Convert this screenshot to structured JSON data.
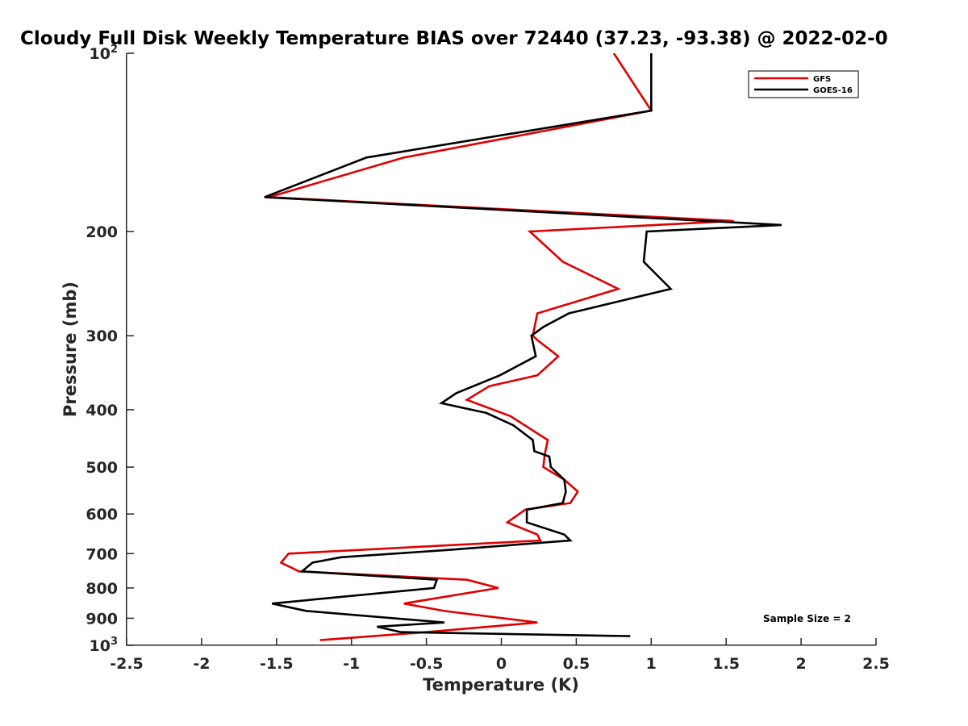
{
  "chart_data": {
    "type": "line",
    "title": "Cloudy Full Disk Weekly Temperature BIAS over 72440 (37.23, -93.38) @ 2022-02-0",
    "xlabel": "Temperature (K)",
    "ylabel": "Pressure (mb)",
    "xlim": [
      -2.5,
      2.5
    ],
    "ylim": [
      100,
      1000
    ],
    "y_scale": "log",
    "y_reversed": true,
    "grid": false,
    "legend_position": "top-right",
    "x_ticks": [
      {
        "value": -2.5,
        "label": "-2.5"
      },
      {
        "value": -2,
        "label": "-2"
      },
      {
        "value": -1.5,
        "label": "-1.5"
      },
      {
        "value": -1,
        "label": "-1"
      },
      {
        "value": -0.5,
        "label": "-0.5"
      },
      {
        "value": 0,
        "label": "0"
      },
      {
        "value": 0.5,
        "label": "0.5"
      },
      {
        "value": 1,
        "label": "1"
      },
      {
        "value": 1.5,
        "label": "1.5"
      },
      {
        "value": 2,
        "label": "2"
      },
      {
        "value": 2.5,
        "label": "2.5"
      }
    ],
    "y_ticks": [
      {
        "value": 100,
        "label": "10",
        "exp": "2"
      },
      {
        "value": 200,
        "label": "200"
      },
      {
        "value": 300,
        "label": "300"
      },
      {
        "value": 400,
        "label": "400"
      },
      {
        "value": 500,
        "label": "500"
      },
      {
        "value": 600,
        "label": "600"
      },
      {
        "value": 700,
        "label": "700"
      },
      {
        "value": 800,
        "label": "800"
      },
      {
        "value": 900,
        "label": "900"
      },
      {
        "value": 1000,
        "label": "10",
        "exp": "3"
      }
    ],
    "series": [
      {
        "name": "GFS",
        "color": "#e00000",
        "points": [
          [
            0.75,
            100
          ],
          [
            1.0,
            125
          ],
          [
            -0.65,
            150
          ],
          [
            -1.55,
            175
          ],
          [
            1.55,
            192
          ],
          [
            0.19,
            200
          ],
          [
            0.41,
            225
          ],
          [
            0.78,
            250
          ],
          [
            0.24,
            275
          ],
          [
            0.21,
            300
          ],
          [
            0.24,
            305
          ],
          [
            0.38,
            325
          ],
          [
            0.24,
            350
          ],
          [
            -0.08,
            365
          ],
          [
            -0.23,
            385
          ],
          [
            0.06,
            410
          ],
          [
            0.31,
            450
          ],
          [
            0.29,
            475
          ],
          [
            0.28,
            500
          ],
          [
            0.42,
            525
          ],
          [
            0.51,
            550
          ],
          [
            0.46,
            575
          ],
          [
            0.16,
            590
          ],
          [
            0.04,
            620
          ],
          [
            0.24,
            650
          ],
          [
            0.26,
            665
          ],
          [
            -1.42,
            700
          ],
          [
            -1.47,
            725
          ],
          [
            -1.35,
            750
          ],
          [
            -0.23,
            775
          ],
          [
            -0.02,
            800
          ],
          [
            -0.65,
            850
          ],
          [
            -0.38,
            875
          ],
          [
            0.24,
            915
          ],
          [
            -0.5,
            950
          ],
          [
            -1.21,
            980
          ]
        ]
      },
      {
        "name": "GOES-16",
        "color": "#000000",
        "points": [
          [
            1.0,
            100
          ],
          [
            1.0,
            125
          ],
          [
            -0.9,
            150
          ],
          [
            -1.58,
            175
          ],
          [
            1.87,
            195
          ],
          [
            0.97,
            200
          ],
          [
            0.95,
            225
          ],
          [
            1.13,
            250
          ],
          [
            0.45,
            275
          ],
          [
            0.28,
            290
          ],
          [
            0.2,
            300
          ],
          [
            0.23,
            325
          ],
          [
            -0.01,
            350
          ],
          [
            -0.3,
            375
          ],
          [
            -0.4,
            390
          ],
          [
            -0.1,
            405
          ],
          [
            0.08,
            425
          ],
          [
            0.21,
            450
          ],
          [
            0.22,
            470
          ],
          [
            0.32,
            480
          ],
          [
            0.33,
            500
          ],
          [
            0.42,
            525
          ],
          [
            0.43,
            550
          ],
          [
            0.41,
            575
          ],
          [
            0.17,
            590
          ],
          [
            0.17,
            620
          ],
          [
            0.42,
            650
          ],
          [
            0.46,
            665
          ],
          [
            -0.35,
            690
          ],
          [
            -1.07,
            710
          ],
          [
            -1.26,
            725
          ],
          [
            -1.33,
            750
          ],
          [
            -0.43,
            775
          ],
          [
            -0.45,
            800
          ],
          [
            -1.53,
            850
          ],
          [
            -1.3,
            875
          ],
          [
            -0.38,
            915
          ],
          [
            -0.83,
            930
          ],
          [
            -0.67,
            950
          ],
          [
            0.86,
            965
          ]
        ]
      }
    ],
    "annotations": [
      "Sample Size = 2"
    ]
  }
}
